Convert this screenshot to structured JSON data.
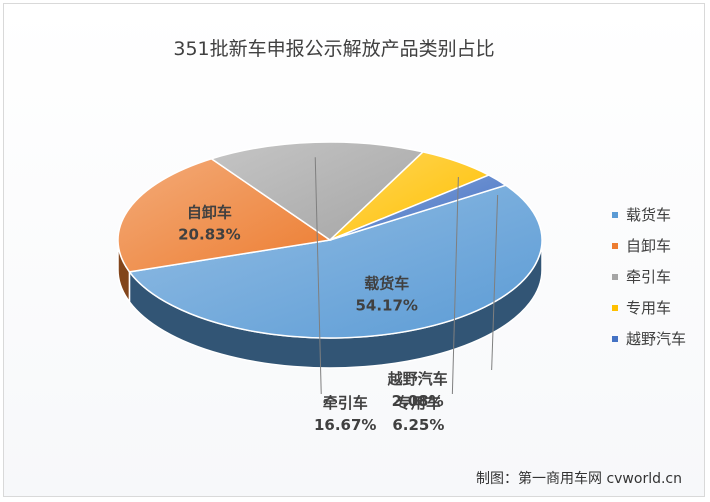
{
  "chart_data": {
    "type": "pie",
    "title": "351批新车申报公示解放产品类别占比",
    "slices": [
      {
        "label": "载货车",
        "value": 54.17,
        "value_label": "54.17%",
        "color": "#5b9bd5"
      },
      {
        "label": "自卸车",
        "value": 20.83,
        "value_label": "20.83%",
        "color": "#ed7d31"
      },
      {
        "label": "牵引车",
        "value": 16.67,
        "value_label": "16.67%",
        "color": "#a5a5a5"
      },
      {
        "label": "专用车",
        "value": 6.25,
        "value_label": "6.25%",
        "color": "#ffc000"
      },
      {
        "label": "越野汽车",
        "value": 2.08,
        "value_label": "2.08%",
        "color": "#4472c4"
      }
    ],
    "legend_position": "right"
  },
  "credit": "制图：第一商用车网 cvworld.cn"
}
